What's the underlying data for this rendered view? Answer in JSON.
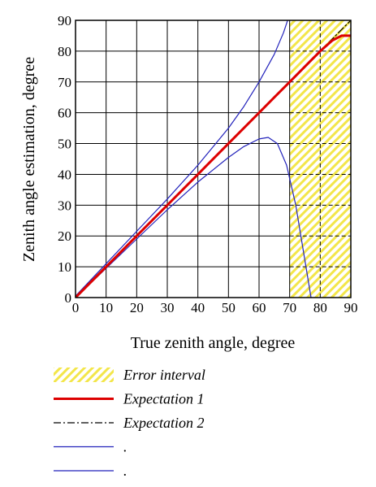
{
  "chart_data": {
    "type": "line",
    "title": "",
    "xlabel": "True zenith angle, degree",
    "ylabel": "Zenith angle estimation, degree",
    "xlim": [
      0,
      90
    ],
    "ylim": [
      0,
      90
    ],
    "xticks": [
      0,
      10,
      20,
      30,
      40,
      50,
      60,
      70,
      80,
      90
    ],
    "yticks": [
      0,
      10,
      20,
      30,
      40,
      50,
      60,
      70,
      80,
      90
    ],
    "grid": true,
    "legend_placement": "below",
    "error_interval": {
      "name": "Error interval",
      "x_range": [
        70,
        90
      ],
      "color": "#f3e64a"
    },
    "series": [
      {
        "name": "Expectation 1",
        "color": "#dd0000",
        "style": "solid-thick",
        "x": [
          0,
          10,
          20,
          30,
          40,
          50,
          60,
          65,
          70,
          75,
          80,
          84,
          87,
          90
        ],
        "y": [
          0,
          10,
          20,
          30,
          40,
          50,
          60,
          65,
          70,
          75,
          80,
          83.5,
          85,
          85
        ]
      },
      {
        "name": "Expectation 2",
        "color": "#000000",
        "style": "dash-dot",
        "x": [
          0,
          90
        ],
        "y": [
          0,
          90
        ]
      },
      {
        "name": ".",
        "color": "#2222bb",
        "style": "solid-thin",
        "x": [
          0,
          10,
          20,
          30,
          40,
          50,
          55,
          60,
          65,
          68,
          70
        ],
        "y": [
          0.5,
          11,
          21.5,
          32,
          43,
          55,
          62,
          70,
          79,
          86,
          92
        ]
      },
      {
        "name": ".",
        "color": "#2222bb",
        "style": "solid-thin",
        "x": [
          0,
          10,
          20,
          30,
          40,
          50,
          55,
          60,
          63,
          66,
          69,
          72,
          75,
          77
        ],
        "y": [
          0,
          9.5,
          19,
          28.5,
          37.5,
          45.5,
          49,
          51.5,
          52,
          50,
          43,
          30,
          12,
          0
        ]
      }
    ]
  }
}
